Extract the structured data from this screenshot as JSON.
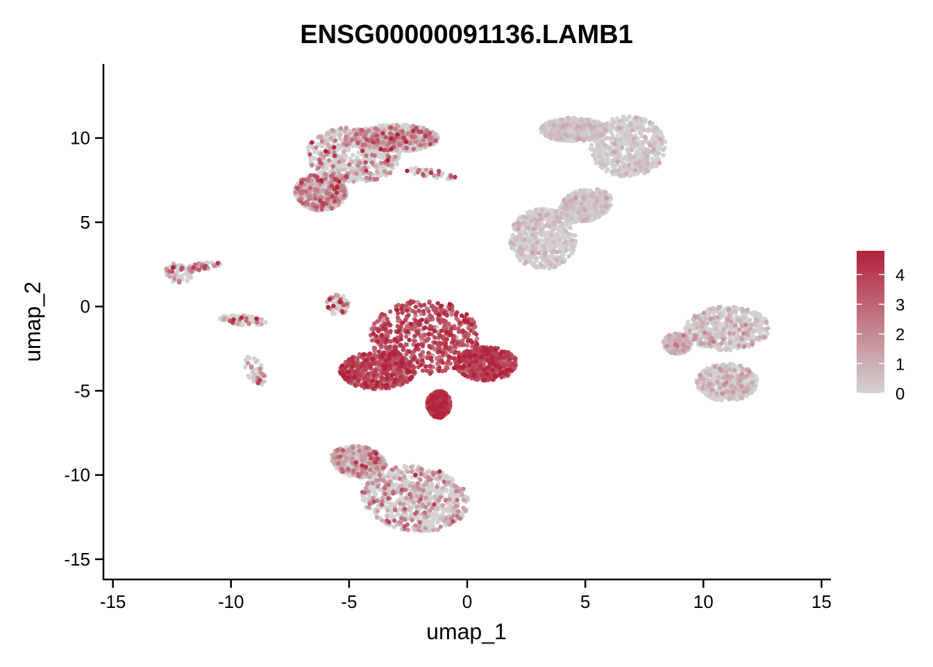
{
  "chart_data": {
    "type": "scatter",
    "title": "ENSG00000091136.LAMB1",
    "xlabel": "umap_1",
    "ylabel": "umap_2",
    "xlim": [
      -15.4,
      15.4
    ],
    "ylim": [
      -16.2,
      14.4
    ],
    "x_ticks": [
      -15,
      -10,
      -5,
      0,
      5,
      10,
      15
    ],
    "y_ticks": [
      -15,
      -10,
      -5,
      0,
      5,
      10
    ],
    "x_tick_labels": [
      "-15",
      "-10",
      "-5",
      "0",
      "5",
      "10",
      "15"
    ],
    "y_tick_labels": [
      "-15",
      "-10",
      "-5",
      "0",
      "5",
      "10"
    ],
    "grid": false,
    "legend": {
      "placement": "right",
      "type": "colorbar",
      "min": 0,
      "max": 4.8,
      "ticks": [
        0,
        1,
        2,
        3,
        4
      ],
      "tick_labels": [
        "0",
        "1",
        "2",
        "3",
        "4"
      ],
      "low_color": "#d3d3d3",
      "high_color": "#b2223b"
    },
    "clusters": [
      {
        "id": "top-left",
        "center": [
          -4.5,
          8.5
        ],
        "approx_cells": 1800,
        "mean_expression": 1.2
      },
      {
        "id": "top-right",
        "center": [
          5.5,
          7.0
        ],
        "approx_cells": 2200,
        "mean_expression": 0.3
      },
      {
        "id": "center",
        "center": [
          -1.5,
          -2.5
        ],
        "approx_cells": 2200,
        "mean_expression": 3.4
      },
      {
        "id": "bottom",
        "center": [
          -2.5,
          -11.0
        ],
        "approx_cells": 1400,
        "mean_expression": 1.0
      },
      {
        "id": "right",
        "center": [
          11.0,
          -2.0
        ],
        "approx_cells": 1400,
        "mean_expression": 0.5
      },
      {
        "id": "far-left",
        "center": [
          -12.0,
          2.2
        ],
        "approx_cells": 120,
        "mean_expression": 1.3
      },
      {
        "id": "small-left-1",
        "center": [
          -9.5,
          -0.8
        ],
        "approx_cells": 80,
        "mean_expression": 1.5
      },
      {
        "id": "small-left-2",
        "center": [
          -9.0,
          -4.0
        ],
        "approx_cells": 60,
        "mean_expression": 1.1
      },
      {
        "id": "small-mid-1",
        "center": [
          -5.5,
          0.0
        ],
        "approx_cells": 60,
        "mean_expression": 2.5
      },
      {
        "id": "small-top-1",
        "center": [
          -1.5,
          7.9
        ],
        "approx_cells": 40,
        "mean_expression": 2.0
      }
    ]
  }
}
